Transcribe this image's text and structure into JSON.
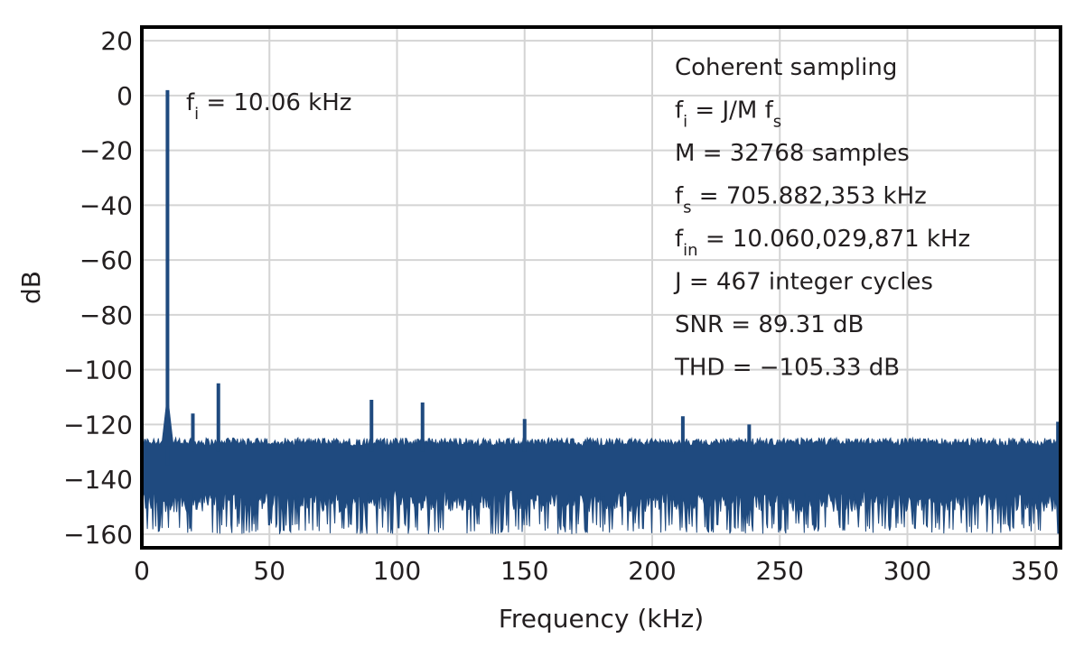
{
  "chart_data": {
    "type": "line",
    "title": "",
    "xlabel": "Frequency (kHz)",
    "ylabel": "dB",
    "xlim": [
      0,
      360
    ],
    "ylim": [
      -165,
      25
    ],
    "xticks": [
      0,
      50,
      100,
      150,
      200,
      250,
      300,
      350
    ],
    "yticks": [
      20,
      0,
      -20,
      -40,
      -60,
      -80,
      -100,
      -120,
      -140,
      -160
    ],
    "grid": true,
    "legend": "none",
    "series_color": "#1f4a7f",
    "noise_floor": {
      "upper_db": -127,
      "lower_db": -160
    },
    "fundamental": {
      "freq_khz": 10.06,
      "db": 2
    },
    "spurs": [
      {
        "freq_khz": 20,
        "db": -116
      },
      {
        "freq_khz": 30,
        "db": -105
      },
      {
        "freq_khz": 90,
        "db": -111
      },
      {
        "freq_khz": 110,
        "db": -112
      },
      {
        "freq_khz": 150,
        "db": -118
      },
      {
        "freq_khz": 212,
        "db": -117
      },
      {
        "freq_khz": 238,
        "db": -120
      },
      {
        "freq_khz": 359,
        "db": -119
      }
    ],
    "annotations": {
      "fundamental_label": {
        "base": "f",
        "sub": "i",
        "text": " = 10.06 kHz"
      },
      "info_box": [
        {
          "base": "Coherent sampling",
          "sub": "",
          "rest": ""
        },
        {
          "base": "f",
          "sub": "i",
          "rest": " = J/M f",
          "sub2": "s"
        },
        {
          "base": "M = 32768 samples",
          "sub": "",
          "rest": ""
        },
        {
          "base": "f",
          "sub": "s",
          "rest": " = 705.882,353 kHz"
        },
        {
          "base": "f",
          "sub": "in",
          "rest": " = 10.060,029,871 kHz"
        },
        {
          "base": "J = 467 integer cycles",
          "sub": "",
          "rest": ""
        },
        {
          "base": "SNR = 89.31 dB",
          "sub": "",
          "rest": ""
        },
        {
          "base": "THD = −105.33 dB",
          "sub": "",
          "rest": ""
        }
      ]
    }
  }
}
